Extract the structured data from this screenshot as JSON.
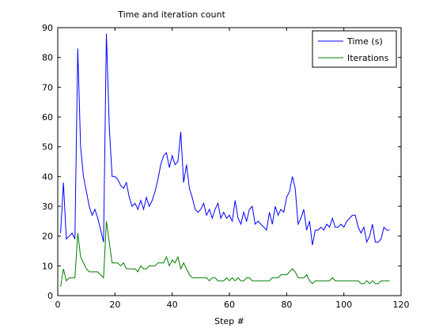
{
  "chart_data": {
    "type": "line",
    "title": "Time and iteration count",
    "xlabel": "Step #",
    "ylabel": "",
    "xlim": [
      0,
      120
    ],
    "ylim": [
      0,
      90
    ],
    "xticks": [
      0,
      20,
      40,
      60,
      80,
      100,
      120
    ],
    "yticks": [
      0,
      10,
      20,
      30,
      40,
      50,
      60,
      70,
      80,
      90
    ],
    "grid": false,
    "legend": "top-right",
    "series": [
      {
        "name": "Time (s)",
        "color": "#0000ff",
        "x": [
          1,
          2,
          3,
          4,
          5,
          6,
          7,
          8,
          9,
          10,
          11,
          12,
          13,
          14,
          15,
          16,
          17,
          18,
          19,
          20,
          21,
          22,
          23,
          24,
          25,
          26,
          27,
          28,
          29,
          30,
          31,
          32,
          33,
          34,
          35,
          36,
          37,
          38,
          39,
          40,
          41,
          42,
          43,
          44,
          45,
          46,
          47,
          48,
          49,
          50,
          51,
          52,
          53,
          54,
          55,
          56,
          57,
          58,
          59,
          60,
          61,
          62,
          63,
          64,
          65,
          66,
          67,
          68,
          69,
          70,
          71,
          72,
          73,
          74,
          75,
          76,
          77,
          78,
          79,
          80,
          81,
          82,
          83,
          84,
          85,
          86,
          87,
          88,
          89,
          90,
          91,
          92,
          93,
          94,
          95,
          96,
          97,
          98,
          99,
          100,
          101,
          102,
          103,
          104,
          105,
          106,
          107,
          108,
          109,
          110,
          111,
          112,
          113,
          114,
          115,
          116
        ],
        "values": [
          21,
          38,
          19,
          20,
          21,
          19,
          83,
          50,
          40,
          35,
          30,
          27,
          29,
          26,
          22,
          18,
          88,
          57,
          40,
          40,
          39,
          37,
          36,
          38,
          33,
          30,
          31,
          29,
          32,
          29,
          33,
          30,
          32,
          35,
          39,
          44,
          47,
          48,
          43,
          47,
          44,
          45,
          55,
          38,
          44,
          36,
          33,
          29,
          28,
          29,
          31,
          27,
          29,
          26,
          29,
          31,
          26,
          28,
          26,
          27,
          25,
          32,
          26,
          24,
          28,
          25,
          29,
          30,
          24,
          25,
          24,
          23,
          22,
          28,
          24,
          30,
          27,
          29,
          28,
          33,
          35,
          40,
          36,
          24,
          26,
          29,
          22,
          25,
          17,
          22,
          22,
          23,
          22,
          24,
          23,
          26,
          23,
          23,
          24,
          23,
          25,
          26,
          27,
          27,
          23,
          21,
          23,
          18,
          20,
          24,
          18,
          18,
          19,
          23,
          22,
          22
        ]
      },
      {
        "name": "Iterations",
        "color": "#007f00",
        "x": [
          1,
          2,
          3,
          4,
          5,
          6,
          7,
          8,
          9,
          10,
          11,
          12,
          13,
          14,
          15,
          16,
          17,
          18,
          19,
          20,
          21,
          22,
          23,
          24,
          25,
          26,
          27,
          28,
          29,
          30,
          31,
          32,
          33,
          34,
          35,
          36,
          37,
          38,
          39,
          40,
          41,
          42,
          43,
          44,
          45,
          46,
          47,
          48,
          49,
          50,
          51,
          52,
          53,
          54,
          55,
          56,
          57,
          58,
          59,
          60,
          61,
          62,
          63,
          64,
          65,
          66,
          67,
          68,
          69,
          70,
          71,
          72,
          73,
          74,
          75,
          76,
          77,
          78,
          79,
          80,
          81,
          82,
          83,
          84,
          85,
          86,
          87,
          88,
          89,
          90,
          91,
          92,
          93,
          94,
          95,
          96,
          97,
          98,
          99,
          100,
          101,
          102,
          103,
          104,
          105,
          106,
          107,
          108,
          109,
          110,
          111,
          112,
          113,
          114,
          115,
          116
        ],
        "values": [
          3,
          9,
          5,
          6,
          6,
          6,
          21,
          13,
          11,
          9,
          8,
          8,
          8,
          8,
          7,
          6,
          25,
          18,
          11,
          11,
          11,
          10,
          11,
          9,
          9,
          9,
          9,
          8,
          10,
          9,
          9,
          10,
          10,
          10,
          11,
          11,
          11,
          13,
          10,
          12,
          11,
          13,
          9,
          11,
          9,
          7,
          6,
          6,
          6,
          6,
          6,
          6,
          5,
          6,
          6,
          5,
          5,
          5,
          6,
          5,
          6,
          5,
          6,
          5,
          5,
          6,
          6,
          5,
          5,
          5,
          5,
          5,
          5,
          5,
          6,
          6,
          6,
          7,
          7,
          7,
          8,
          9,
          8,
          6,
          6,
          6,
          7,
          5,
          4,
          5,
          5,
          5,
          5,
          5,
          5,
          6,
          5,
          5,
          5,
          5,
          5,
          5,
          5,
          5,
          5,
          4,
          4,
          5,
          4,
          5,
          4,
          4,
          5,
          5,
          5,
          5
        ]
      }
    ]
  }
}
